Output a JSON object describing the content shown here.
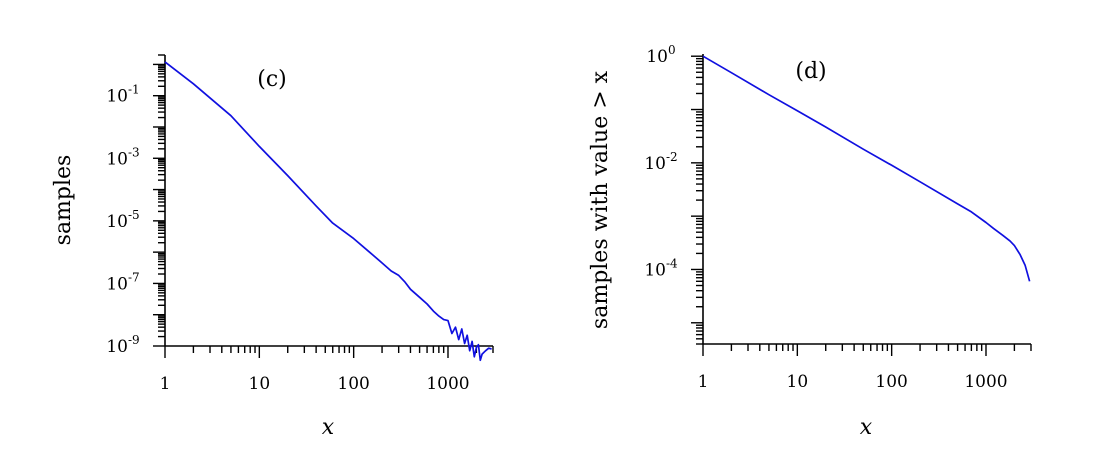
{
  "chart_data": [
    {
      "type": "line",
      "panel_label": "(c)",
      "xlabel": "x",
      "ylabel": "samples",
      "x_scale": "log",
      "y_scale": "log",
      "xlim": [
        1,
        3000
      ],
      "ylim": [
        1e-09,
        2
      ],
      "x_ticks": [
        {
          "value": 1,
          "label": "1"
        },
        {
          "value": 10,
          "label": "10"
        },
        {
          "value": 100,
          "label": "100"
        },
        {
          "value": 1000,
          "label": "1000"
        }
      ],
      "y_ticks": [
        {
          "value": 0.1,
          "base": "10",
          "exp": "-1"
        },
        {
          "value": 0.001,
          "base": "10",
          "exp": "-3"
        },
        {
          "value": 1e-05,
          "base": "10",
          "exp": "-5"
        },
        {
          "value": 1e-07,
          "base": "10",
          "exp": "-7"
        },
        {
          "value": 1e-09,
          "base": "10",
          "exp": "-9"
        }
      ],
      "grid": false,
      "color": "#1010e0",
      "series": [
        {
          "x": [
            1,
            2,
            5,
            10,
            20,
            40,
            60,
            100,
            150,
            200,
            250,
            300,
            350,
            400,
            500,
            600,
            700,
            800,
            900,
            1000,
            1100,
            1200,
            1300,
            1400,
            1500,
            1600,
            1700,
            1800,
            1900,
            2000,
            2100,
            2200,
            2300,
            2500,
            2700,
            2900
          ],
          "y": [
            1.2,
            0.24,
            0.023,
            0.0024,
            0.00028,
            3e-05,
            8.5e-06,
            2.7e-06,
            9.5e-07,
            4.5e-07,
            2.5e-07,
            1.8e-07,
            1.1e-07,
            6.5e-08,
            3.6e-08,
            2.2e-08,
            1.3e-08,
            9e-09,
            7e-09,
            6.5e-09,
            2.5e-09,
            4e-09,
            1.6e-09,
            3.5e-09,
            1.2e-09,
            2.2e-09,
            7e-10,
            1.4e-09,
            4.5e-10,
            9e-10,
            1.1e-09,
            3.5e-10,
            5.5e-10,
            7e-10,
            8.5e-10,
            8e-10
          ]
        }
      ]
    },
    {
      "type": "line",
      "panel_label": "(d)",
      "xlabel": "x",
      "ylabel": "samples with value > x",
      "x_scale": "log",
      "y_scale": "log",
      "xlim": [
        1,
        3000
      ],
      "ylim": [
        4e-06,
        1.1
      ],
      "x_ticks": [
        {
          "value": 1,
          "label": "1"
        },
        {
          "value": 10,
          "label": "10"
        },
        {
          "value": 100,
          "label": "100"
        },
        {
          "value": 1000,
          "label": "1000"
        }
      ],
      "y_ticks": [
        {
          "value": 1,
          "base": "10",
          "exp": "0"
        },
        {
          "value": 0.01,
          "base": "10",
          "exp": "-2"
        },
        {
          "value": 0.0001,
          "base": "10",
          "exp": "-4"
        }
      ],
      "grid": false,
      "color": "#1010e0",
      "series": [
        {
          "x": [
            1,
            2,
            5,
            10,
            20,
            50,
            100,
            200,
            500,
            700,
            1000,
            1200,
            1500,
            1800,
            2000,
            2300,
            2600,
            2900
          ],
          "y": [
            1.0,
            0.49,
            0.19,
            0.095,
            0.047,
            0.018,
            0.009,
            0.0044,
            0.0017,
            0.0012,
            0.00076,
            0.00059,
            0.00044,
            0.00034,
            0.00028,
            0.00019,
            0.00012,
            6e-05
          ]
        }
      ]
    }
  ]
}
